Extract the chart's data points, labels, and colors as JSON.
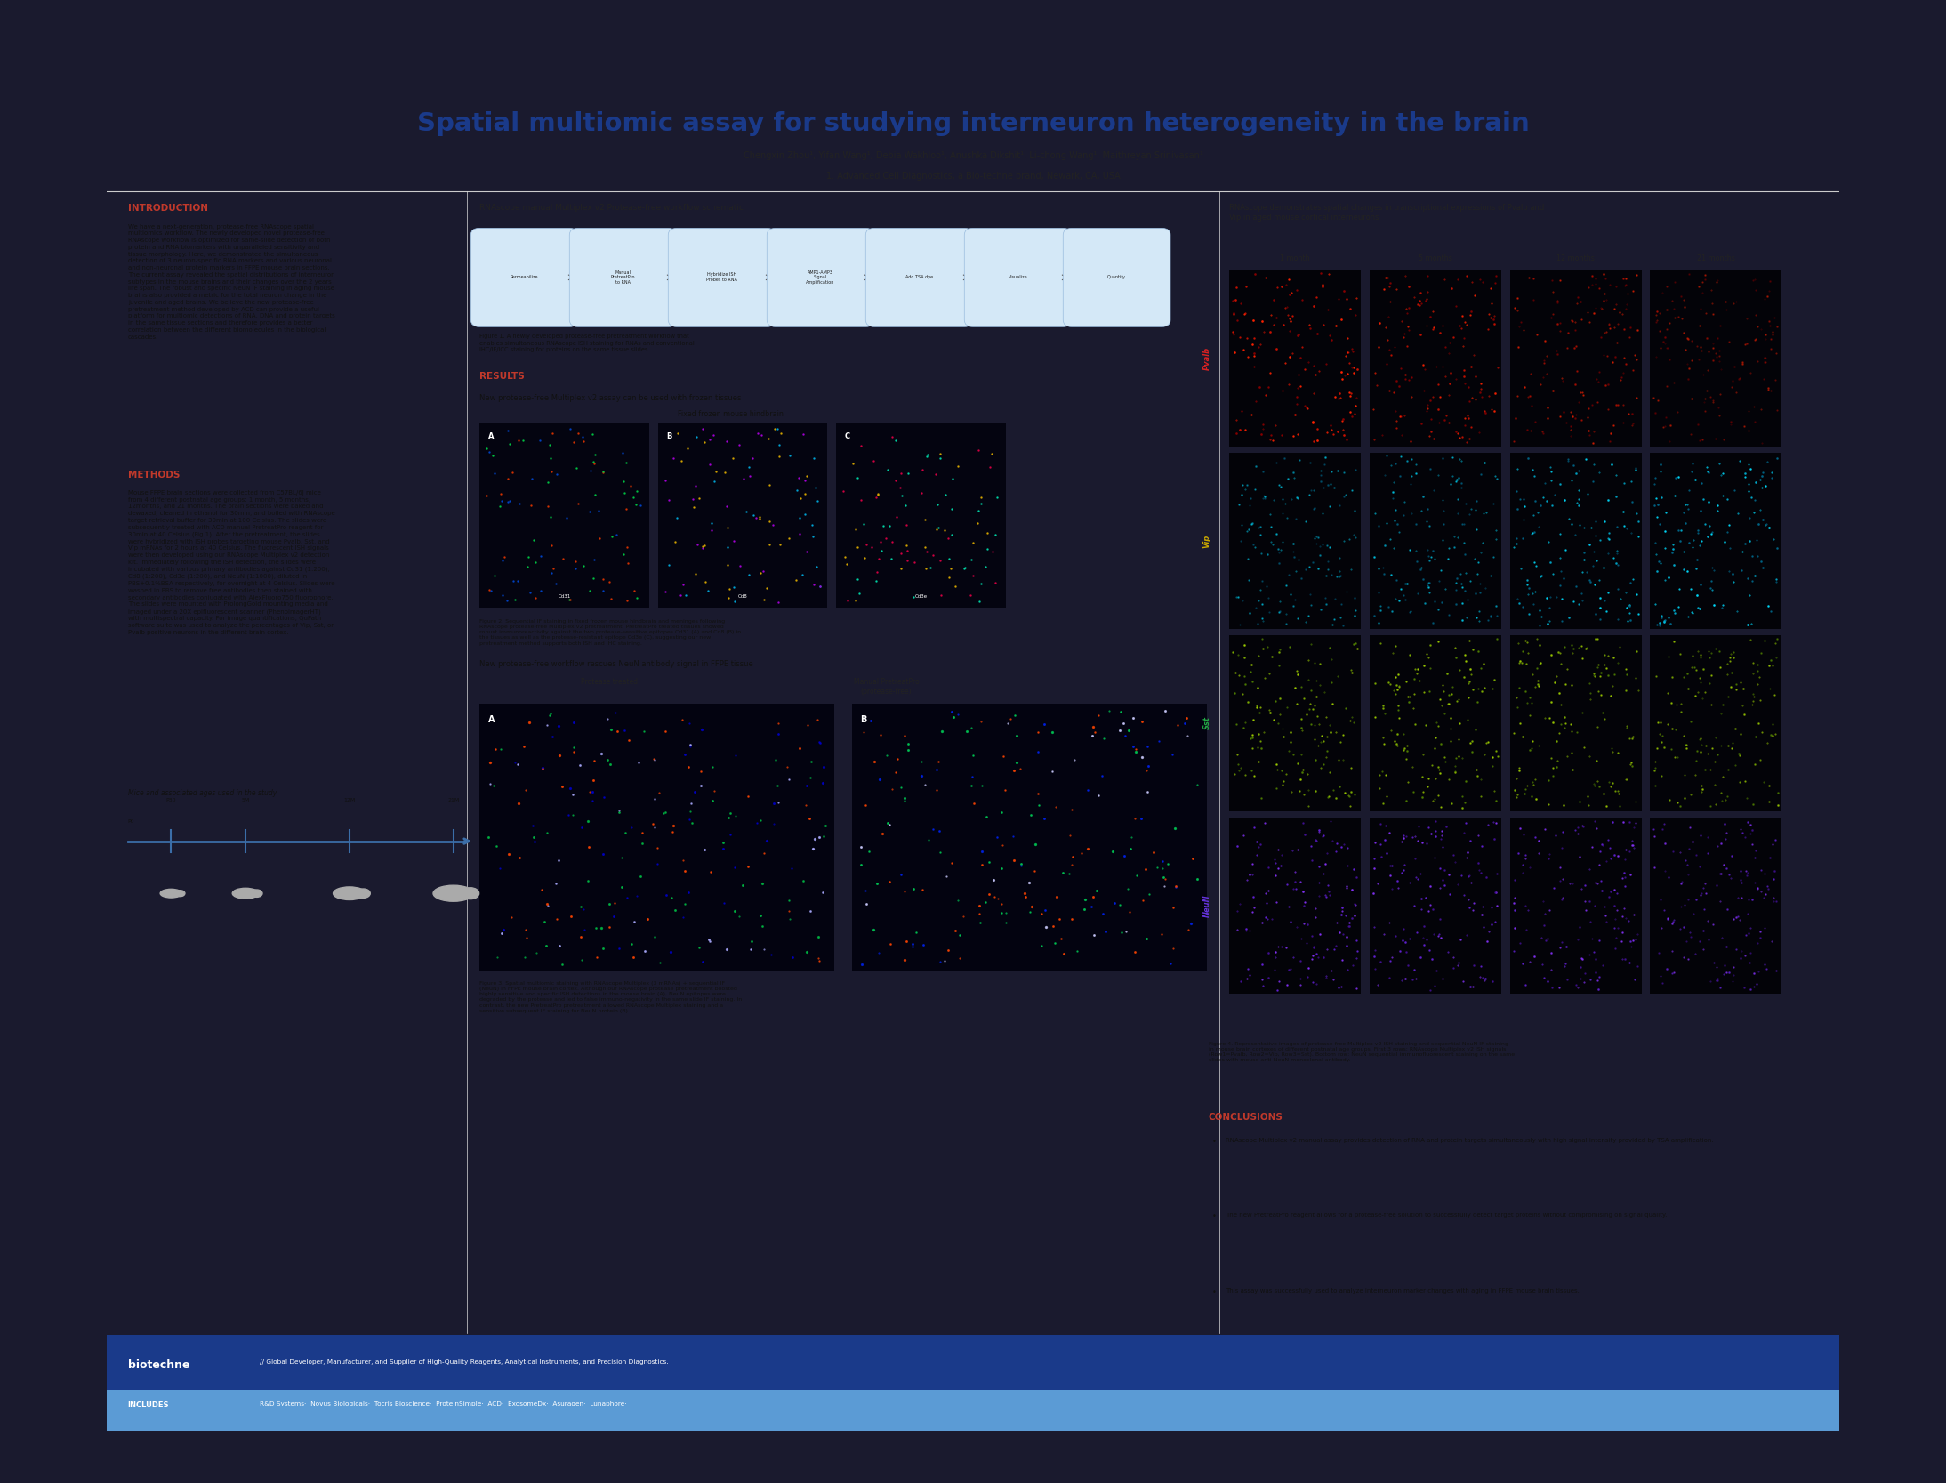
{
  "title": "Spatial multiomic assay for studying interneuron heterogeneity in the brain",
  "authors": "Chengxin Zhou¹, Yifan Wang¹, Debia Wakhloo¹, Anushka Dikshit¹, Li-chong Wang¹, Maithreyan Srinivasan¹",
  "affiliation": "1. Advanced Cell Diagnostics, a Bio-techne brand, Newark, CA, USA",
  "title_color": "#1a3a8a",
  "section_header_color": "#c0392b",
  "intro_header": "INTRODUCTION",
  "methods_header": "METHODS",
  "mice_header": "Mice and associated ages used in the study",
  "results_header": "RESULTS",
  "results_text1": "New protease-free Multiplex v2 assay can be used with frozen tissues",
  "results_text2": "New protease-free workflow rescues NeuN antibody signal in FFPE tissue",
  "workflow_title": "RNAscope manual Multiplex v2 Protease-free workflow schematic",
  "frozen_tissue_title": "Fixed frozen mouse hindbrain",
  "ffpe_title_a": "Protease treated",
  "ffpe_title_b": "Manual PretreatPro\n(protease-free)",
  "right_section_title": "RNAscope demonstrates spatial changes in transcriptional expressions of Pvalb and\nVip in aged mouse cortical interneurons",
  "age_labels": [
    "1 month",
    "5 months",
    "12 months",
    "21 months"
  ],
  "row_labels": [
    "Pvalb",
    "Vip",
    "Sst",
    "NeuN"
  ],
  "row_label_colors": [
    "#dd2222",
    "#ccaa00",
    "#22aa44",
    "#6633dd"
  ],
  "conclusions_header": "CONCLUSIONS",
  "conclusion1": "RNAscope Multiplex v2 manual assay provides detection of RNA and protein targets simultaneously with high signal intensity provided by TSA amplification.",
  "conclusion2": "The new PretreatPro reagent allows for a protease-free solution to successfully detect target proteins without compromising on signal quality.",
  "conclusion3": "This assay was successfully used to analyze interneuron marker changes with aging in FFPE mouse brain tissues.",
  "footer_bg": "#1a3a8a",
  "includes_bg": "#5b9bd5",
  "outer_bg": "#1a1a2e"
}
